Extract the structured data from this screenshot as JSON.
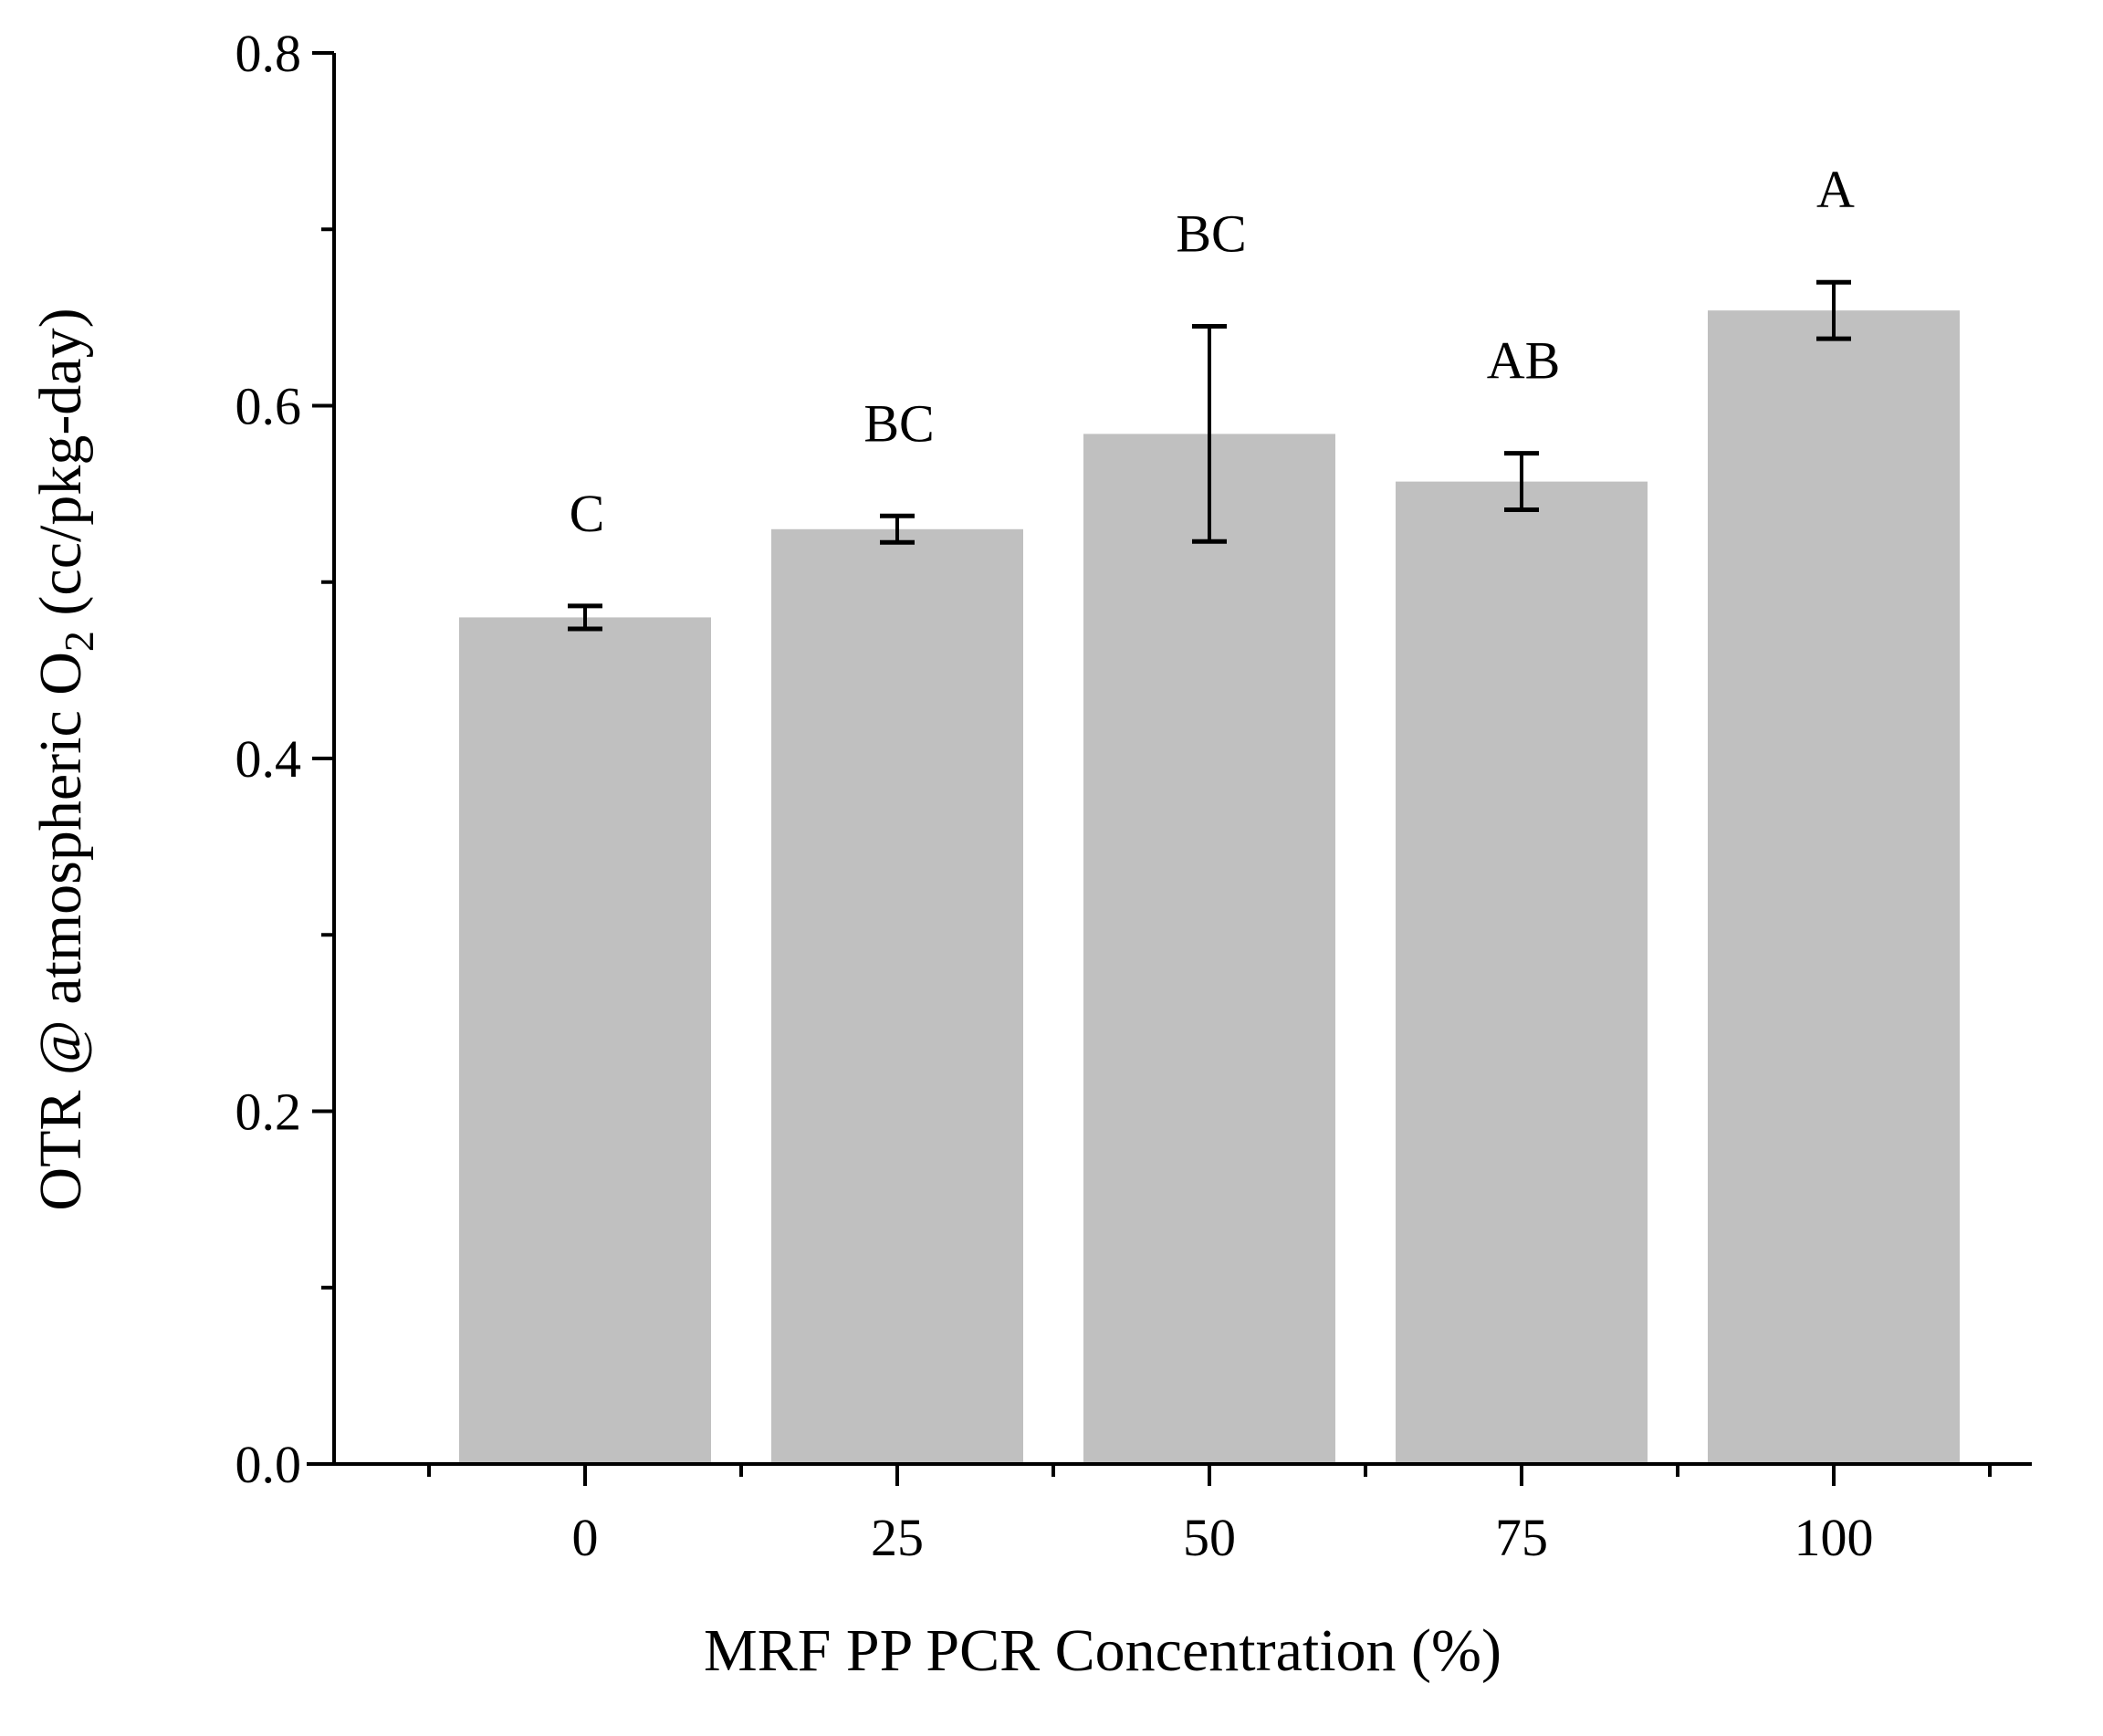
{
  "chart_data": {
    "type": "bar",
    "title": "",
    "xlabel": "MRF PP PCR Concentration (%)",
    "ylabel": {
      "prefix": "OTR @ atmospheric O",
      "subscript": "2",
      "suffix": " (cc/pkg-day)"
    },
    "categories": [
      "0",
      "25",
      "50",
      "75",
      "100"
    ],
    "values": [
      0.48,
      0.53,
      0.584,
      0.557,
      0.654
    ],
    "errors": [
      0.0065,
      0.0075,
      0.061,
      0.016,
      0.016
    ],
    "significance_labels": [
      "C",
      "BC",
      "BC",
      "AB",
      "A"
    ],
    "ylim": [
      0,
      0.8
    ],
    "yticks": [
      "0.0",
      "0.2",
      "0.4",
      "0.6",
      "0.8"
    ],
    "grid": false,
    "legend": "none",
    "colors": {
      "bar": "#c0c0c0",
      "axis": "#000000",
      "error_bar": "#000000"
    }
  }
}
